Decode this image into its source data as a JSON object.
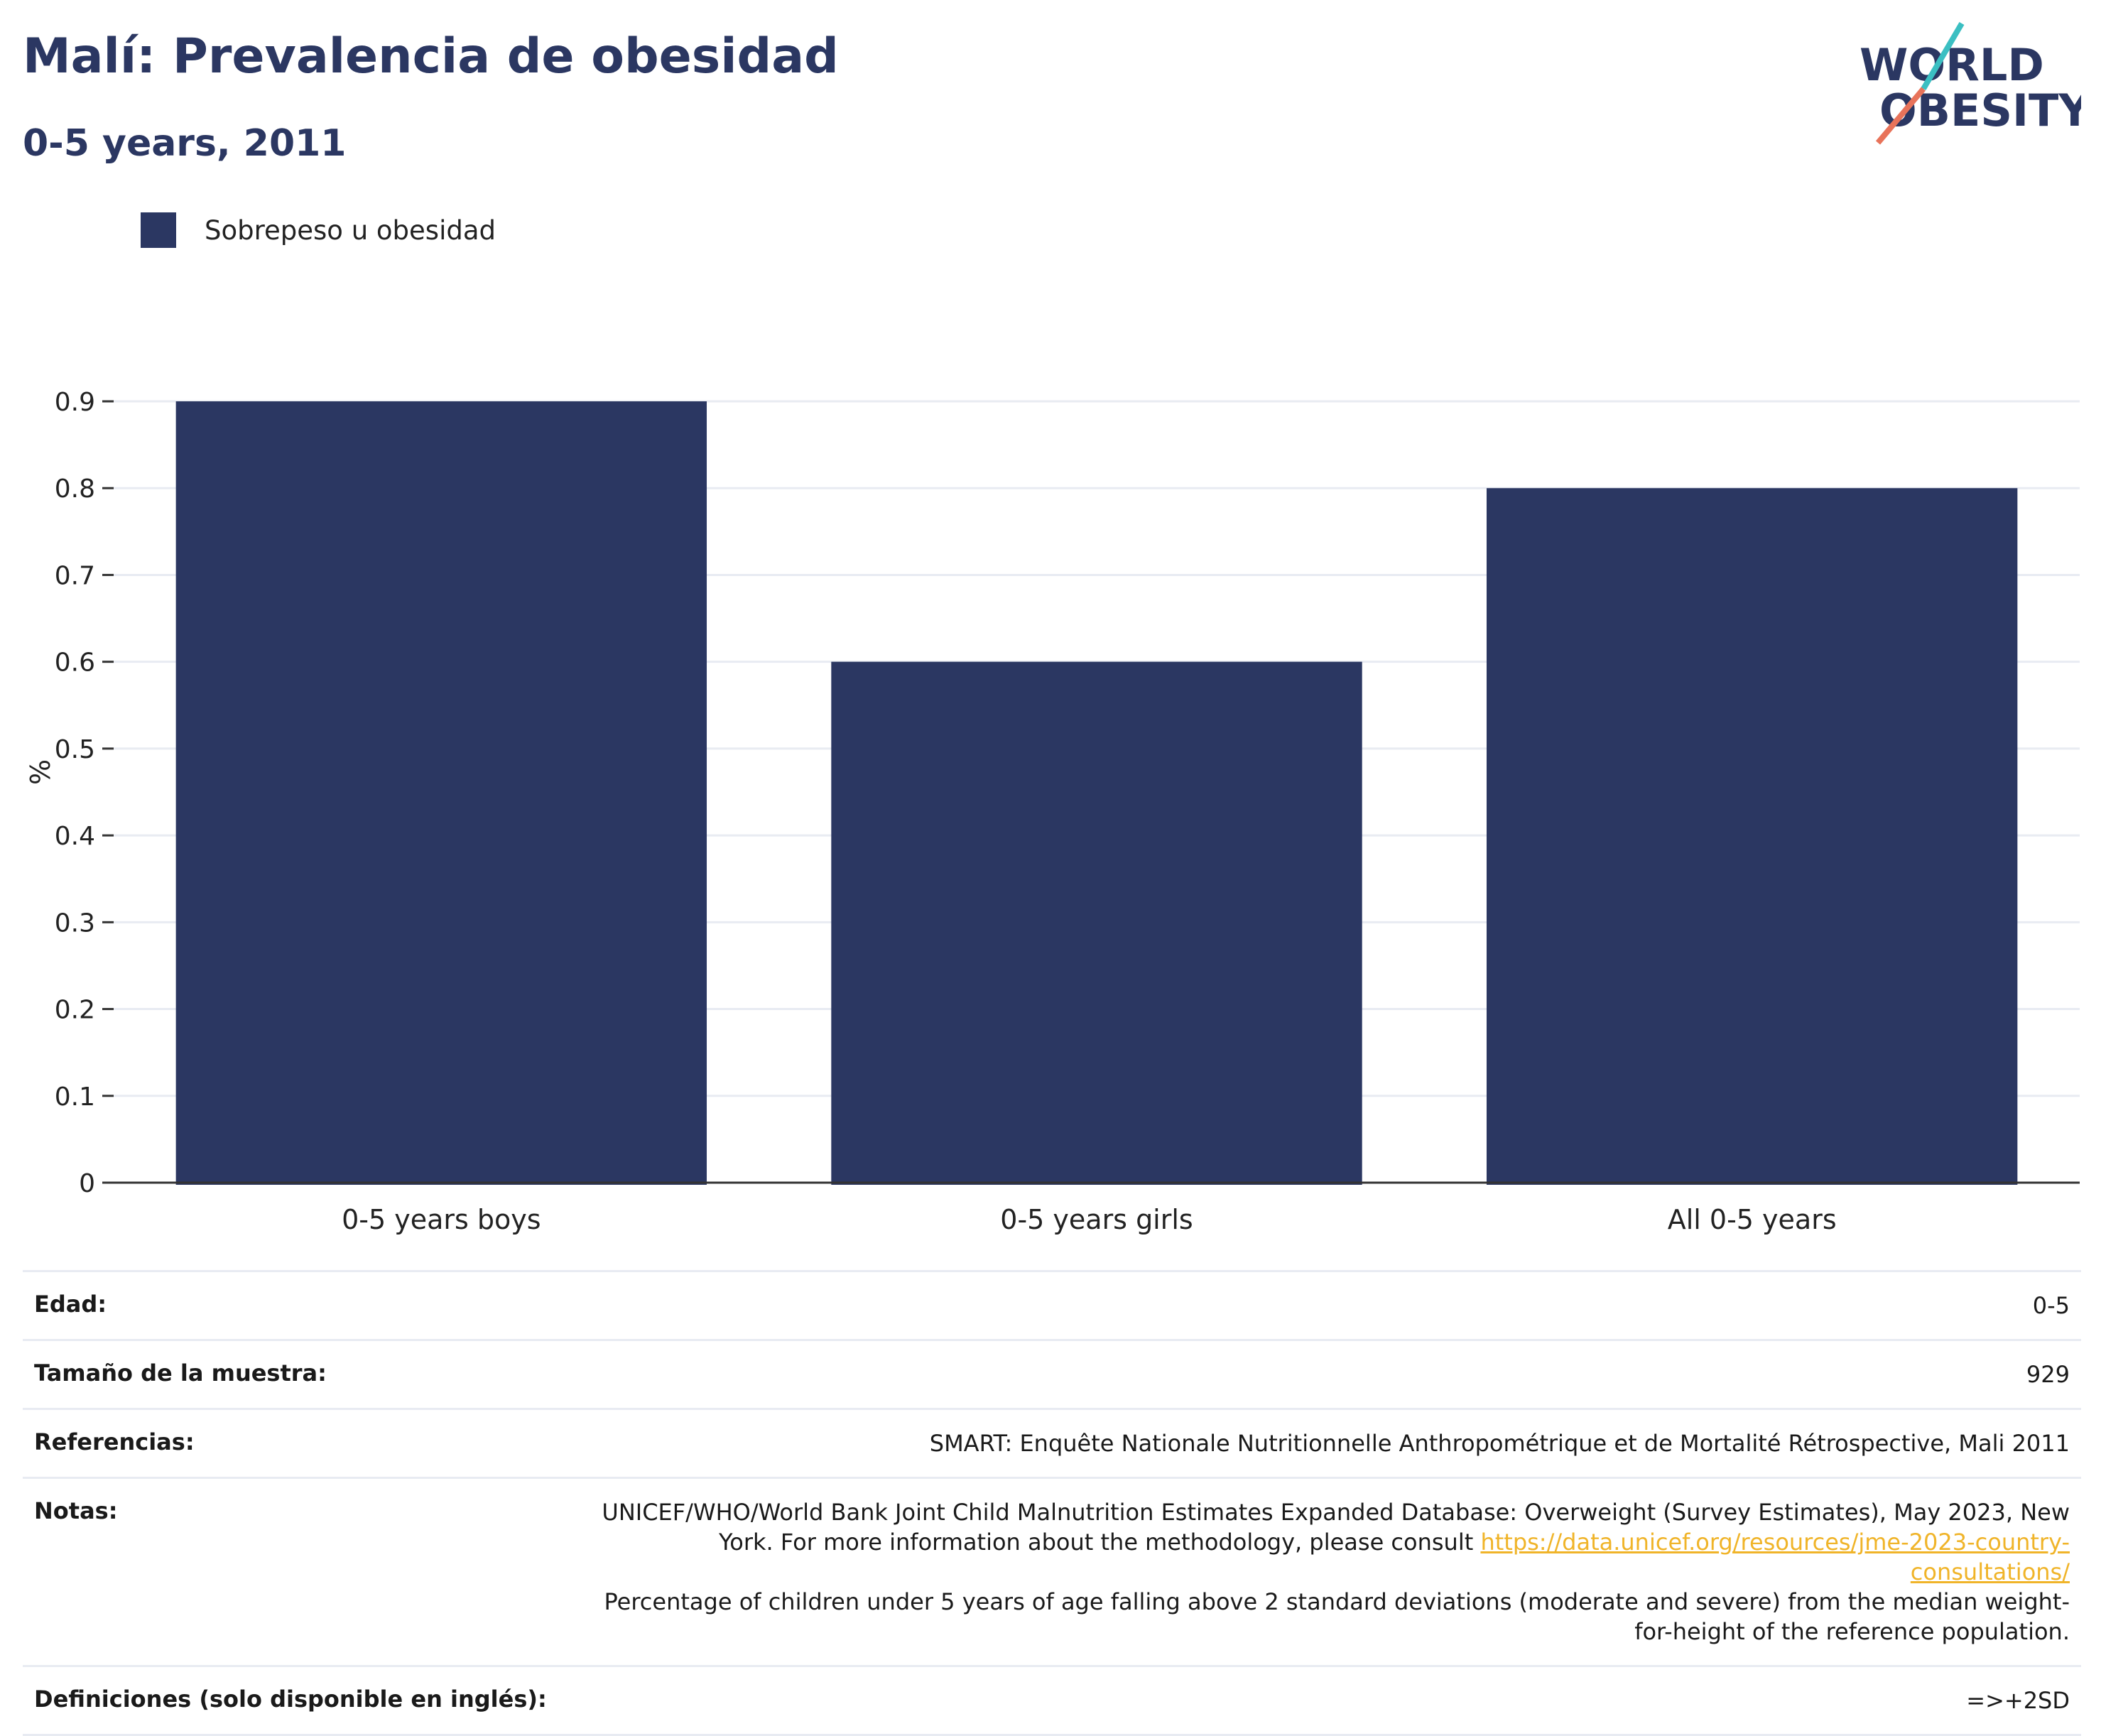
{
  "header": {
    "title": "Malí: Prevalencia de obesidad",
    "subtitle": "0-5 years, 2011"
  },
  "logo": {
    "line1": "WORLD",
    "line2": "OBESITY",
    "slash_colors": [
      "#3bbfc2",
      "#e8735a"
    ]
  },
  "legend": {
    "label": "Sobrepeso u obesidad"
  },
  "colors": {
    "bar": "#2b3762",
    "grid": "#e8ebf2",
    "axis": "#333333",
    "link": "#f0b429"
  },
  "chart_data": {
    "type": "bar",
    "categories": [
      "0-5 years boys",
      "0-5 years girls",
      "All 0-5 years"
    ],
    "series": [
      {
        "name": "Sobrepeso u obesidad",
        "values": [
          0.9,
          0.6,
          0.8
        ]
      }
    ],
    "ylabel": "%",
    "xlabel": "",
    "ylim": [
      0,
      0.9
    ],
    "yticks": [
      "0",
      "0.1",
      "0.2",
      "0.3",
      "0.4",
      "0.5",
      "0.6",
      "0.7",
      "0.8",
      "0.9"
    ],
    "grid": true,
    "legend_position": "top-left"
  },
  "info": {
    "edad_label": "Edad:",
    "edad_value": "0-5",
    "muestra_label": "Tamaño de la muestra:",
    "muestra_value": "929",
    "referencias_label": "Referencias:",
    "referencias_value": "SMART: Enquête Nationale Nutritionnelle Anthropométrique et de Mortalité Rétrospective, Mali 2011",
    "notas_label": "Notas:",
    "notas_text1": "UNICEF/WHO/World Bank Joint Child Malnutrition Estimates Expanded Database: Overweight (Survey Estimates), May 2023, New York. For more information about the methodology, please consult ",
    "notas_link": "https://data.unicef.org/resources/jme-2023-country-consultations/",
    "notas_text2": "Percentage of children under 5 years of age falling above 2 standard deviations (moderate and severe) from the median weight-for-height of the reference population.",
    "definiciones_label": "Definiciones (solo disponible en inglés):",
    "definiciones_value": "=>+2SD"
  }
}
